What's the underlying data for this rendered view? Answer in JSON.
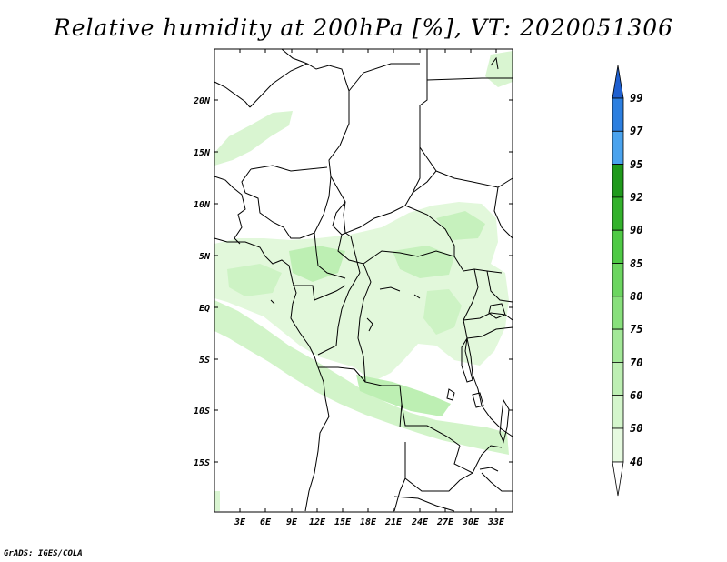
{
  "title": "Relative humidity at 200hPa [%], VT: 2020051306",
  "credit": "GrADS: IGES/COLA",
  "lat_labels": [
    "20N",
    "15N",
    "10N",
    "5N",
    "EQ",
    "5S",
    "10S",
    "15S"
  ],
  "lon_labels": [
    "3E",
    "6E",
    "9E",
    "12E",
    "15E",
    "18E",
    "21E",
    "24E",
    "27E",
    "30E",
    "33E"
  ],
  "colorbar": {
    "levels": [
      "99",
      "97",
      "95",
      "92",
      "90",
      "85",
      "80",
      "75",
      "70",
      "60",
      "50",
      "40"
    ],
    "colors": {
      "c40_50": "#e6fae0",
      "c50_60": "#d4f6cc",
      "c60_70": "#bdefb3",
      "c70_75": "#a3e898",
      "c75_80": "#88e07c",
      "c80_85": "#6cd660",
      "c85_90": "#4fca45",
      "c90_92": "#33b22c",
      "c92_95": "#1f9a1c",
      "c95_97": "#4aa3ee",
      "c97_99": "#2c7fe0",
      "c99_up": "#1e5fcf"
    }
  }
}
